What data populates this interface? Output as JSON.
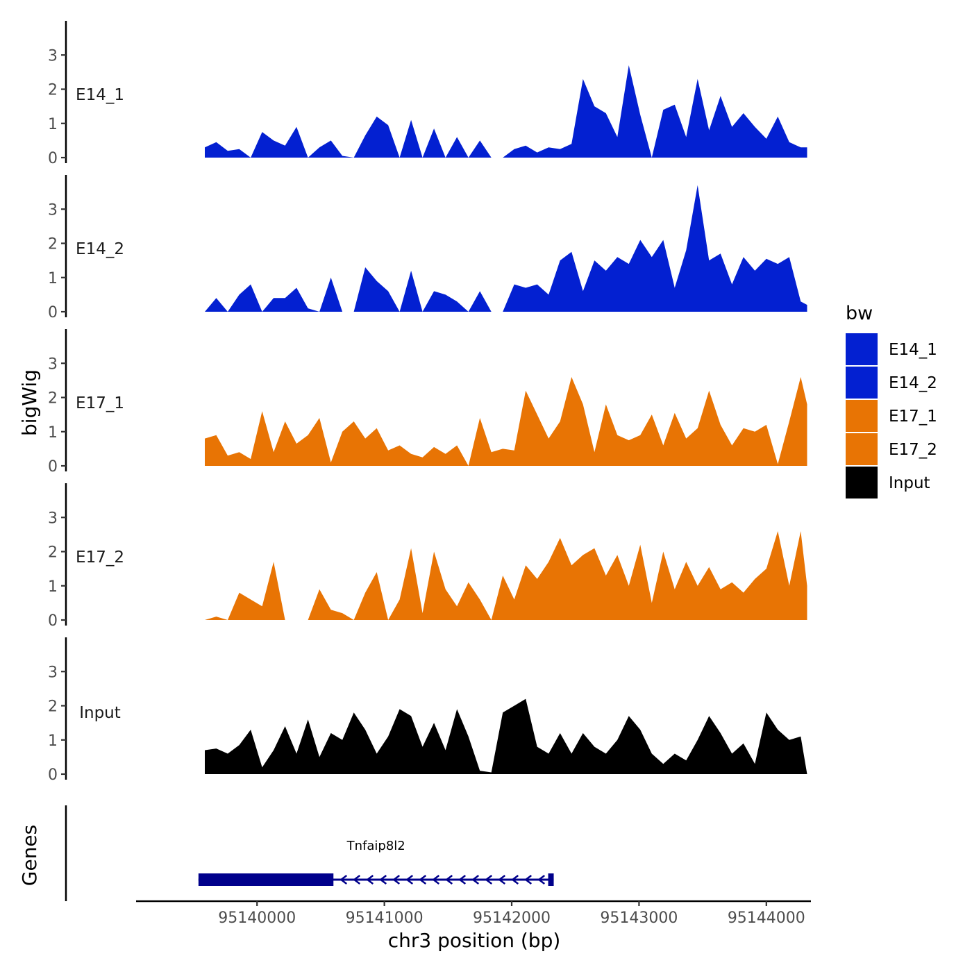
{
  "chart_data": {
    "type": "area",
    "title": "",
    "xlabel": "chr3 position (bp)",
    "ylabel": "bigWig",
    "gene_track_label": "Genes",
    "xlim": [
      95139050,
      95144350
    ],
    "x_ticks": [
      95140000,
      95141000,
      95142000,
      95143000,
      95144000
    ],
    "x_tick_labels": [
      "95140000",
      "95141000",
      "95142000",
      "95143000",
      "95144000"
    ],
    "ylim": [
      0,
      4
    ],
    "y_ticks": [
      0,
      1,
      2,
      3
    ],
    "y_tick_labels": [
      "0",
      "1",
      "2",
      "3"
    ],
    "legend": {
      "title": "bw",
      "position": "right",
      "entries": [
        {
          "label": "E14_1",
          "color": "#0320d1"
        },
        {
          "label": "E14_2",
          "color": "#0320d1"
        },
        {
          "label": "E17_1",
          "color": "#e87404"
        },
        {
          "label": "E17_2",
          "color": "#e87404"
        },
        {
          "label": "Input",
          "color": "#000000"
        }
      ]
    },
    "x": [
      95139590,
      95139680,
      95139770,
      95139860,
      95139950,
      95140040,
      95140130,
      95140220,
      95140310,
      95140400,
      95140490,
      95140580,
      95140670,
      95140760,
      95140850,
      95140940,
      95141030,
      95141120,
      95141210,
      95141300,
      95141390,
      95141480,
      95141570,
      95141660,
      95141750,
      95141840,
      95141930,
      95142020,
      95142110,
      95142200,
      95142290,
      95142380,
      95142470,
      95142560,
      95142650,
      95142740,
      95142830,
      95142920,
      95143010,
      95143100,
      95143190,
      95143280,
      95143370,
      95143460,
      95143550,
      95143640,
      95143730,
      95143820,
      95143910,
      95144000,
      95144090,
      95144180,
      95144270,
      95144320
    ],
    "series": [
      {
        "name": "E14_1",
        "color": "#0320d1",
        "values": [
          0.3,
          0.45,
          0.2,
          0.25,
          0.0,
          0.75,
          0.5,
          0.35,
          0.9,
          0.0,
          0.3,
          0.5,
          0.05,
          0.0,
          0.65,
          1.2,
          0.95,
          0.0,
          1.1,
          0.0,
          0.85,
          0.0,
          0.6,
          0.0,
          0.5,
          0.0,
          0.0,
          0.25,
          0.35,
          0.15,
          0.3,
          0.25,
          0.4,
          2.3,
          1.5,
          1.3,
          0.6,
          2.7,
          1.25,
          0.0,
          1.4,
          1.55,
          0.6,
          2.3,
          0.8,
          1.8,
          0.9,
          1.3,
          0.9,
          0.55,
          1.2,
          0.45,
          0.3,
          0.3
        ]
      },
      {
        "name": "E14_2",
        "color": "#0320d1",
        "values": [
          0.0,
          0.4,
          0.0,
          0.5,
          0.8,
          0.0,
          0.4,
          0.4,
          0.7,
          0.1,
          0.0,
          1.0,
          0.0,
          0.0,
          1.3,
          0.9,
          0.6,
          0.0,
          1.2,
          0.0,
          0.6,
          0.5,
          0.3,
          0.0,
          0.6,
          0.0,
          0.0,
          0.8,
          0.7,
          0.8,
          0.5,
          1.5,
          1.75,
          0.6,
          1.5,
          1.2,
          1.6,
          1.4,
          2.1,
          1.6,
          2.1,
          0.7,
          1.8,
          3.7,
          1.5,
          1.7,
          0.8,
          1.6,
          1.2,
          1.55,
          1.4,
          1.6,
          0.3,
          0.2
        ]
      },
      {
        "name": "E17_1",
        "color": "#e87404",
        "values": [
          0.8,
          0.9,
          0.3,
          0.4,
          0.2,
          1.6,
          0.4,
          1.3,
          0.65,
          0.9,
          1.4,
          0.1,
          1.0,
          1.3,
          0.8,
          1.1,
          0.45,
          0.6,
          0.35,
          0.25,
          0.55,
          0.35,
          0.6,
          0.0,
          1.4,
          0.4,
          0.5,
          0.45,
          2.2,
          1.5,
          0.8,
          1.3,
          2.6,
          1.8,
          0.4,
          1.8,
          0.9,
          0.75,
          0.9,
          1.5,
          0.6,
          1.55,
          0.8,
          1.1,
          2.2,
          1.2,
          0.6,
          1.1,
          1.0,
          1.2,
          0.05,
          1.3,
          2.6,
          1.8
        ]
      },
      {
        "name": "E17_2",
        "color": "#e87404",
        "values": [
          0.0,
          0.1,
          0.0,
          0.8,
          0.6,
          0.4,
          1.7,
          0.0,
          0.0,
          0.0,
          0.9,
          0.3,
          0.2,
          0.0,
          0.8,
          1.4,
          0.0,
          0.6,
          2.1,
          0.2,
          2.0,
          0.9,
          0.4,
          1.1,
          0.6,
          0.0,
          1.3,
          0.6,
          1.6,
          1.2,
          1.7,
          2.4,
          1.6,
          1.9,
          2.1,
          1.3,
          1.9,
          1.0,
          2.2,
          0.5,
          2.0,
          0.9,
          1.7,
          1.0,
          1.55,
          0.9,
          1.1,
          0.8,
          1.2,
          1.5,
          2.6,
          1.0,
          2.6,
          1.0
        ]
      },
      {
        "name": "Input",
        "color": "#000000",
        "values": [
          0.7,
          0.75,
          0.6,
          0.85,
          1.3,
          0.2,
          0.7,
          1.4,
          0.6,
          1.6,
          0.5,
          1.2,
          1.0,
          1.8,
          1.3,
          0.6,
          1.1,
          1.9,
          1.7,
          0.8,
          1.5,
          0.7,
          1.9,
          1.1,
          0.1,
          0.05,
          1.8,
          2.0,
          2.2,
          0.8,
          0.6,
          1.2,
          0.6,
          1.2,
          0.8,
          0.6,
          1.0,
          1.7,
          1.3,
          0.6,
          0.3,
          0.6,
          0.4,
          1.0,
          1.7,
          1.2,
          0.6,
          0.9,
          0.3,
          1.8,
          1.3,
          1.0,
          1.1,
          0.0
        ]
      }
    ],
    "genes": [
      {
        "name": "Tnfaip8l2",
        "start": 95139540,
        "end": 95142330,
        "strand": "-",
        "thick_start": 95139540,
        "thick_end": 95140600,
        "color": "#00008b"
      }
    ]
  }
}
